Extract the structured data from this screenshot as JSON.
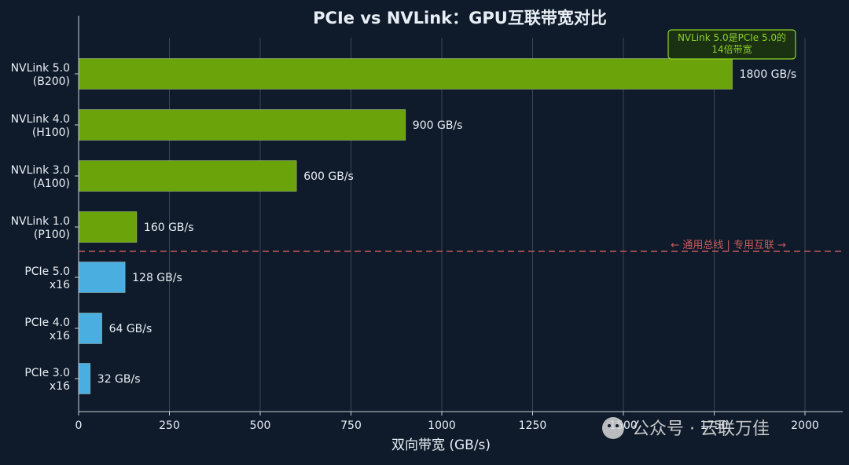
{
  "chart_data": {
    "type": "bar",
    "orientation": "horizontal",
    "title": "PCIe vs NVLink：GPU互联带宽对比",
    "xlabel": "双向带宽 (GB/s)",
    "xlim": [
      0,
      2000
    ],
    "xticks": [
      "0",
      "250",
      "500",
      "750",
      "1000",
      "1250",
      "1500",
      "1750",
      "2000"
    ],
    "grid": true,
    "categories": [
      {
        "line1": "NVLink 5.0",
        "line2": "(B200)"
      },
      {
        "line1": "NVLink 4.0",
        "line2": "(H100)"
      },
      {
        "line1": "NVLink 3.0",
        "line2": "(A100)"
      },
      {
        "line1": "NVLink 1.0",
        "line2": "(P100)"
      },
      {
        "line1": "PCIe 5.0",
        "line2": "x16"
      },
      {
        "line1": "PCIe 4.0",
        "line2": "x16"
      },
      {
        "line1": "PCIe 3.0",
        "line2": "x16"
      }
    ],
    "values": [
      1800,
      900,
      600,
      160,
      128,
      64,
      32
    ],
    "value_labels": [
      "1800 GB/s",
      "900 GB/s",
      "600 GB/s",
      "160 GB/s",
      "128 GB/s",
      "64 GB/s",
      "32 GB/s"
    ],
    "groups": [
      "nvlink",
      "nvlink",
      "nvlink",
      "nvlink",
      "pcie",
      "pcie",
      "pcie"
    ],
    "colors": {
      "nvlink": "#6aa30a",
      "pcie": "#4aaee0",
      "divider": "#c95a5a",
      "annotation": "#8fd12a",
      "background": "#0f1b2a",
      "grid": "#3a4656",
      "text": "#e8eef5"
    },
    "divider_label": "← 通用总线 | 专用互联 →",
    "annotation": {
      "line1": "NVLink 5.0是PCIe 5.0的",
      "line2": "14倍带宽"
    }
  },
  "watermark": "公众号 · 云联万佳"
}
